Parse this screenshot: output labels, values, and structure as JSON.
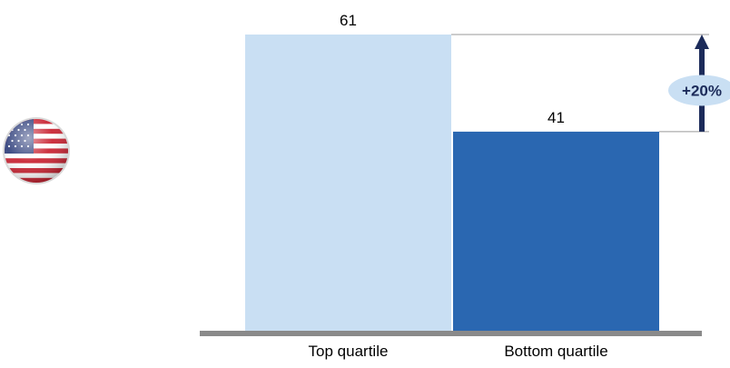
{
  "chart_data": {
    "type": "bar",
    "categories": [
      "Top quartile",
      "Bottom quartile"
    ],
    "values": [
      61,
      41
    ],
    "ylim": [
      0,
      61
    ],
    "title": "",
    "xlabel": "",
    "ylabel": "",
    "grid": false,
    "colors": [
      "#c9dff3",
      "#2a67b1"
    ],
    "annotation": {
      "label": "+20%",
      "from_value": 41,
      "to_value": 61,
      "arrow_color": "#1c2b5a",
      "badge_color": "#c9dff3"
    }
  },
  "icons": {
    "flag": "us-flag-icon"
  },
  "colors": {
    "axis": "#8a8a8a",
    "text": "#000000"
  }
}
